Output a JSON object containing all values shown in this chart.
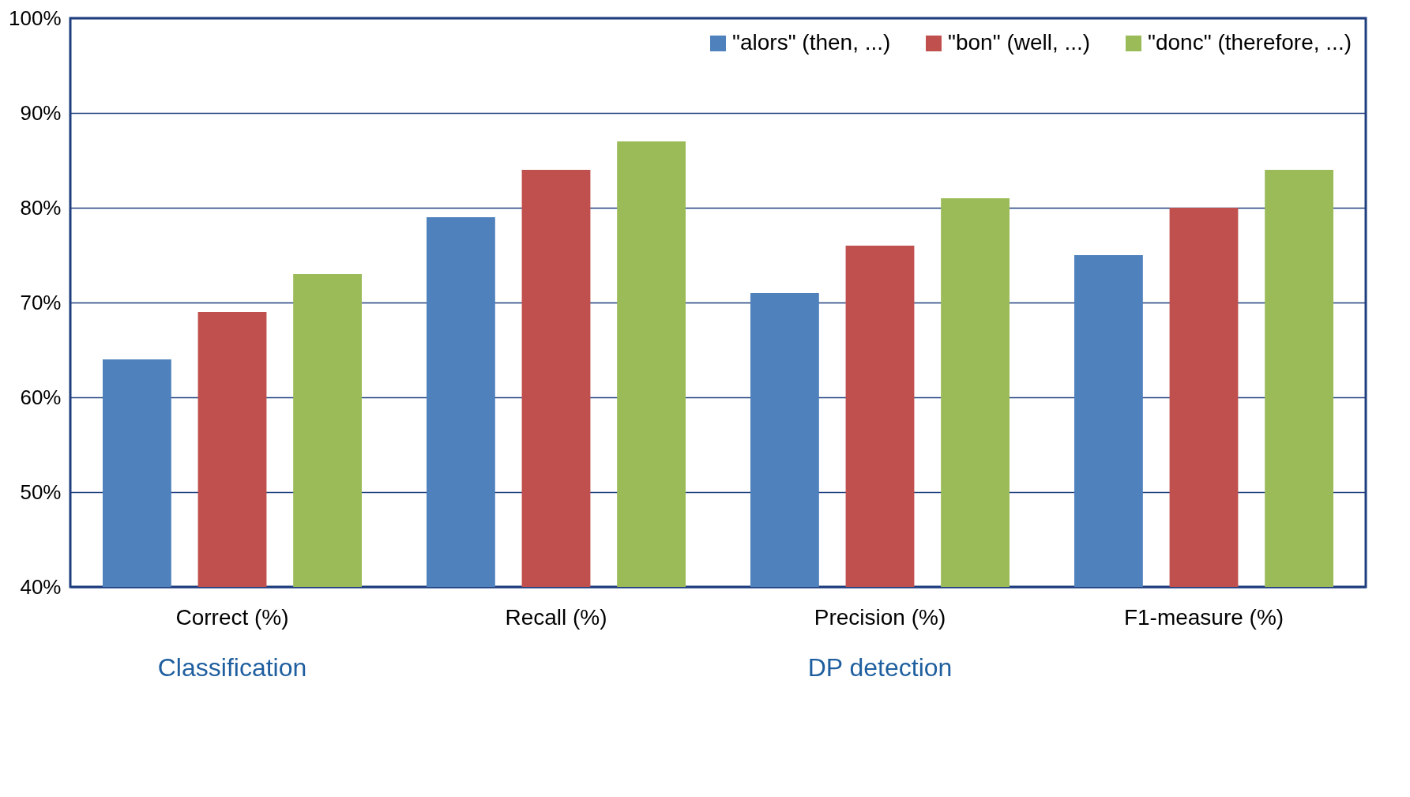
{
  "chart_data": {
    "type": "bar",
    "categories": [
      "Correct (%)",
      "Recall (%)",
      "Precision (%)",
      "F1-measure (%)"
    ],
    "series": [
      {
        "name": "\"alors\" (then, ...)",
        "color": "#4f81bd",
        "values": [
          64,
          79,
          71,
          75
        ]
      },
      {
        "name": "\"bon\" (well, ...)",
        "color": "#c0504d",
        "values": [
          69,
          84,
          76,
          80
        ]
      },
      {
        "name": "\"donc\" (therefore, ...)",
        "color": "#9bbb59",
        "values": [
          73,
          87,
          81,
          84
        ]
      }
    ],
    "ylim": [
      40,
      100
    ],
    "yticks": [
      {
        "value": 40,
        "label": "40%"
      },
      {
        "value": 50,
        "label": "50%"
      },
      {
        "value": 60,
        "label": "60%"
      },
      {
        "value": 70,
        "label": "70%"
      },
      {
        "value": 80,
        "label": "80%"
      },
      {
        "value": 90,
        "label": "90%"
      },
      {
        "value": 100,
        "label": "100%"
      }
    ],
    "grid": "y",
    "legend": "top right",
    "annotations": [
      "Classification",
      "DP detection"
    ]
  }
}
